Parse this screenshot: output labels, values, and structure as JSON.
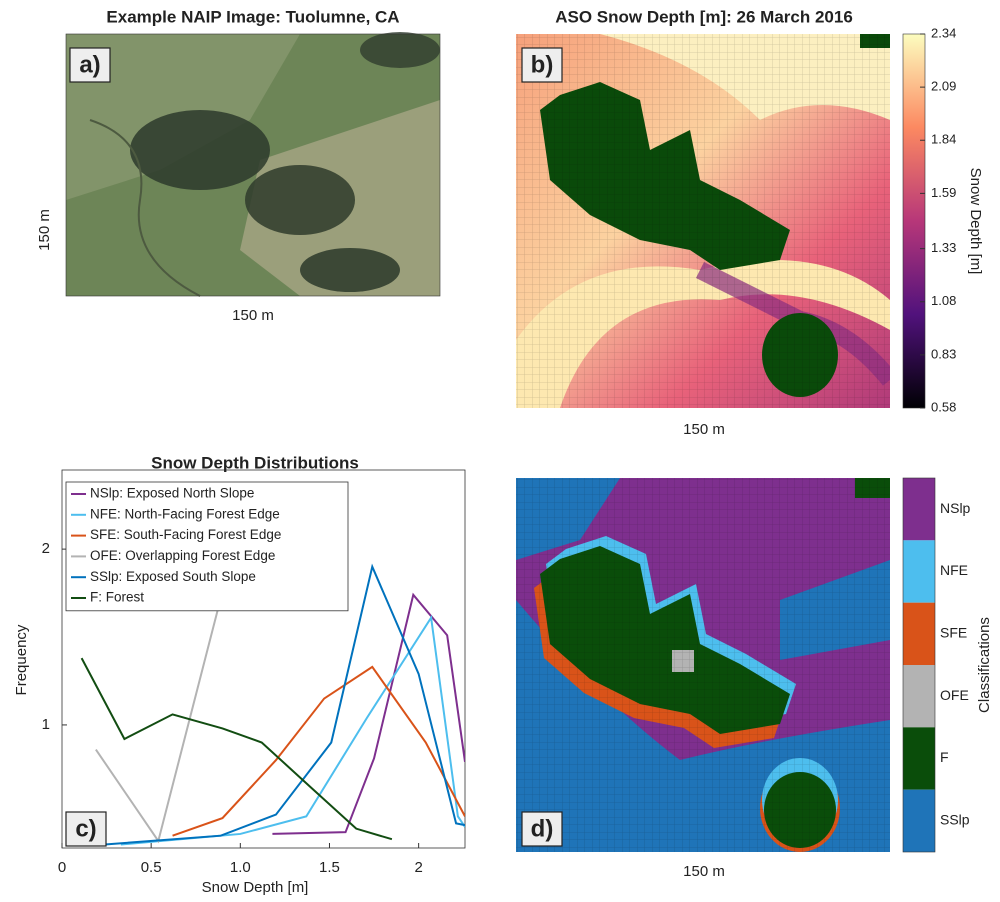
{
  "chart_data": [
    {
      "type": "image",
      "title": "Example NAIP Image: Tuolumne, CA",
      "panel_label": "a)",
      "xlabel": "150 m",
      "ylabel": "150 m"
    },
    {
      "type": "heatmap",
      "title": "ASO Snow Depth [m]: 26 March 2016",
      "panel_label": "b)",
      "xlabel": "150 m",
      "colorbar_label": "Snow Depth [m]",
      "colormap": "magma",
      "clim": [
        0.58,
        2.34
      ],
      "cticks": [
        0.58,
        0.83,
        1.08,
        1.33,
        1.59,
        1.84,
        2.09,
        2.34
      ]
    },
    {
      "type": "line",
      "title": "Snow Depth Distributions",
      "panel_label": "c)",
      "xlabel": "Snow Depth [m]",
      "ylabel": "Frequency",
      "xlim": [
        0,
        2.26
      ],
      "xticks": [
        0,
        0.5,
        {
          "value": 1,
          "label": "1.0"
        },
        1.5,
        2
      ],
      "ylim": [
        0.3,
        2.45
      ],
      "yticks": [
        1,
        2
      ],
      "legend": "upper left",
      "series": [
        {
          "name": "NSlp: Exposed North Slope",
          "color": "#7e2f8e",
          "x": [
            1.18,
            1.59,
            1.75,
            1.97,
            2.16,
            2.26
          ],
          "values": [
            0.38,
            0.39,
            0.81,
            1.74,
            1.51,
            0.79
          ]
        },
        {
          "name": "NFE: North-Facing Forest Edge",
          "color": "#4dbeee",
          "x": [
            0.33,
            1.0,
            1.37,
            1.71,
            2.07,
            2.22,
            2.26
          ],
          "values": [
            0.32,
            0.38,
            0.48,
            1.04,
            1.61,
            0.48,
            0.42
          ]
        },
        {
          "name": "SFE: South-Facing Forest Edge",
          "color": "#d95319",
          "x": [
            0.62,
            0.9,
            1.2,
            1.47,
            1.74,
            2.04,
            2.26
          ],
          "values": [
            0.37,
            0.47,
            0.8,
            1.15,
            1.33,
            0.9,
            0.48
          ]
        },
        {
          "name": "OFE: Overlapping Forest Edge",
          "color": "#b3b3b3",
          "x": [
            0.19,
            0.54,
            0.89
          ],
          "values": [
            0.86,
            0.34,
            1.72
          ]
        },
        {
          "name": "SSlp: Exposed South Slope",
          "color": "#0072bd",
          "x": [
            0.24,
            0.89,
            1.2,
            1.51,
            1.74,
            2.0,
            2.21,
            2.26
          ],
          "values": [
            0.32,
            0.37,
            0.49,
            0.9,
            1.9,
            1.29,
            0.44,
            0.43
          ]
        },
        {
          "name": "F: Forest",
          "color": "#124d12",
          "x": [
            0.11,
            0.35,
            0.62,
            0.9,
            1.12,
            1.39,
            1.65,
            1.85
          ],
          "values": [
            1.38,
            0.92,
            1.06,
            0.98,
            0.9,
            0.65,
            0.41,
            0.35
          ]
        }
      ]
    },
    {
      "type": "categorical",
      "panel_label": "d)",
      "xlabel": "150 m",
      "colorbar_label": "Classifications",
      "classes": [
        {
          "name": "NSlp",
          "color": "#7e2f8e"
        },
        {
          "name": "NFE",
          "color": "#4dbeee"
        },
        {
          "name": "SFE",
          "color": "#d95319"
        },
        {
          "name": "OFE",
          "color": "#b3b3b3"
        },
        {
          "name": "F",
          "color": "#0a4d0a"
        },
        {
          "name": "SSlp",
          "color": "#1f74b8"
        }
      ]
    }
  ]
}
